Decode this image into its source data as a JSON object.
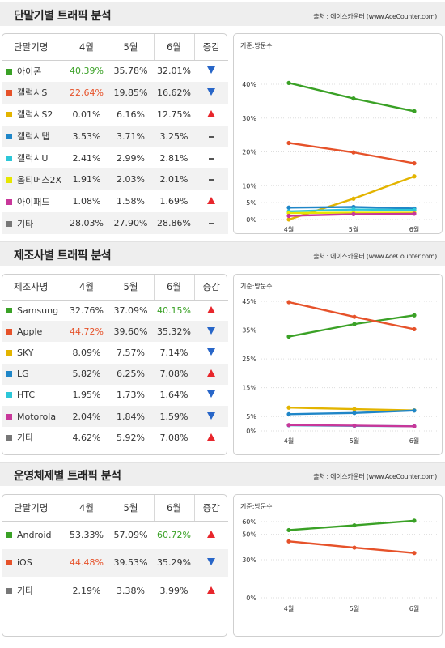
{
  "colors": {
    "green": "#3aa126",
    "red": "#e6522a",
    "hl_green": "#3aa126",
    "hl_red": "#e6522a"
  },
  "source_text": "출처 : 에이스카운터 (www.AceCounter.com)",
  "chart_note": "기준:방문수",
  "sections": [
    {
      "title": "단말기별 트래픽 분석",
      "source": "출처 : 에이스카운터 (www.AceCounter.com)",
      "columns": [
        "단말기명",
        "4월",
        "5월",
        "6월",
        "증감"
      ],
      "rows": [
        {
          "name": "아이폰",
          "color": "#3aa126",
          "v4": "40.39%",
          "v5": "35.78%",
          "v6": "32.01%",
          "trend": "down",
          "hl": "v4",
          "hl_color": "#3aa126"
        },
        {
          "name": "갤럭시S",
          "color": "#e6522a",
          "v4": "22.64%",
          "v5": "19.85%",
          "v6": "16.62%",
          "trend": "down",
          "hl": "v4",
          "hl_color": "#e6522a"
        },
        {
          "name": "갤럭시S2",
          "color": "#e3b400",
          "v4": "0.01%",
          "v5": "6.16%",
          "v6": "12.75%",
          "trend": "up"
        },
        {
          "name": "갤럭시탭",
          "color": "#1f86c8",
          "v4": "3.53%",
          "v5": "3.71%",
          "v6": "3.25%",
          "trend": "flat"
        },
        {
          "name": "갤럭시U",
          "color": "#2cc7d8",
          "v4": "2.41%",
          "v5": "2.99%",
          "v6": "2.81%",
          "trend": "flat"
        },
        {
          "name": "옵티머스2X",
          "color": "#e6e600",
          "v4": "1.91%",
          "v5": "2.03%",
          "v6": "2.01%",
          "trend": "flat"
        },
        {
          "name": "아이패드",
          "color": "#c8379a",
          "v4": "1.08%",
          "v5": "1.58%",
          "v6": "1.69%",
          "trend": "up"
        },
        {
          "name": "기타",
          "color": "#777777",
          "v4": "28.03%",
          "v5": "27.90%",
          "v6": "28.86%",
          "trend": "flat"
        }
      ]
    },
    {
      "title": "제조사별 트래픽 분석",
      "source": "출처 : 에이스카운터 (www.AceCounter.com)",
      "columns": [
        "제조사명",
        "4월",
        "5월",
        "6월",
        "증감"
      ],
      "rows": [
        {
          "name": "Samsung",
          "color": "#3aa126",
          "v4": "32.76%",
          "v5": "37.09%",
          "v6": "40.15%",
          "trend": "up",
          "hl": "v6",
          "hl_color": "#3aa126"
        },
        {
          "name": "Apple",
          "color": "#e6522a",
          "v4": "44.72%",
          "v5": "39.60%",
          "v6": "35.32%",
          "trend": "down",
          "hl": "v4",
          "hl_color": "#e6522a"
        },
        {
          "name": "SKY",
          "color": "#e3b400",
          "v4": "8.09%",
          "v5": "7.57%",
          "v6": "7.14%",
          "trend": "down"
        },
        {
          "name": "LG",
          "color": "#1f86c8",
          "v4": "5.82%",
          "v5": "6.25%",
          "v6": "7.08%",
          "trend": "up"
        },
        {
          "name": "HTC",
          "color": "#2cc7d8",
          "v4": "1.95%",
          "v5": "1.73%",
          "v6": "1.64%",
          "trend": "down"
        },
        {
          "name": "Motorola",
          "color": "#c8379a",
          "v4": "2.04%",
          "v5": "1.84%",
          "v6": "1.59%",
          "trend": "down"
        },
        {
          "name": "기타",
          "color": "#777777",
          "v4": "4.62%",
          "v5": "5.92%",
          "v6": "7.08%",
          "trend": "up"
        }
      ]
    },
    {
      "title": "운영체제별 트래픽 분석",
      "source": "출처 : 에이스카운터 (www.AceCounter.com)",
      "columns": [
        "단말기명",
        "4월",
        "5월",
        "6월",
        "증감"
      ],
      "rows": [
        {
          "name": "Android",
          "color": "#3aa126",
          "v4": "53.33%",
          "v5": "57.09%",
          "v6": "60.72%",
          "trend": "up",
          "hl": "v6",
          "hl_color": "#3aa126"
        },
        {
          "name": "iOS",
          "color": "#e6522a",
          "v4": "44.48%",
          "v5": "39.53%",
          "v6": "35.29%",
          "trend": "down",
          "hl": "v4",
          "hl_color": "#e6522a"
        },
        {
          "name": "기타",
          "color": "#777777",
          "v4": "2.19%",
          "v5": "3.38%",
          "v6": "3.99%",
          "trend": "up"
        }
      ]
    }
  ],
  "chart_data": [
    {
      "type": "line",
      "note": "기준:방문수",
      "x": [
        "4월",
        "5월",
        "6월"
      ],
      "yticks": [
        "0%",
        "5%",
        "10%",
        "20%",
        "30%",
        "40%"
      ],
      "ytick_values": [
        0,
        5,
        10,
        20,
        30,
        40
      ],
      "ylim": [
        0,
        45
      ],
      "series": [
        {
          "name": "아이폰",
          "color": "#3aa126",
          "values": [
            40.39,
            35.78,
            32.01
          ]
        },
        {
          "name": "갤럭시S",
          "color": "#e6522a",
          "values": [
            22.64,
            19.85,
            16.62
          ]
        },
        {
          "name": "갤럭시S2",
          "color": "#e3b400",
          "values": [
            0.01,
            6.16,
            12.75
          ]
        },
        {
          "name": "갤럭시탭",
          "color": "#1f86c8",
          "values": [
            3.53,
            3.71,
            3.25
          ]
        },
        {
          "name": "갤럭시U",
          "color": "#2cc7d8",
          "values": [
            2.41,
            2.99,
            2.81
          ]
        },
        {
          "name": "옵티머스2X",
          "color": "#e6e600",
          "values": [
            1.91,
            2.03,
            2.01
          ]
        },
        {
          "name": "아이패드",
          "color": "#c8379a",
          "values": [
            1.08,
            1.58,
            1.69
          ]
        }
      ]
    },
    {
      "type": "line",
      "note": "기준:방문수",
      "x": [
        "4월",
        "5월",
        "6월"
      ],
      "yticks": [
        "0%",
        "5%",
        "15%",
        "25%",
        "35%",
        "45%"
      ],
      "ytick_values": [
        0,
        5,
        15,
        25,
        35,
        45
      ],
      "ylim": [
        0,
        45
      ],
      "series": [
        {
          "name": "Samsung",
          "color": "#3aa126",
          "values": [
            32.76,
            37.09,
            40.15
          ]
        },
        {
          "name": "Apple",
          "color": "#e6522a",
          "values": [
            44.72,
            39.6,
            35.32
          ]
        },
        {
          "name": "SKY",
          "color": "#e3b400",
          "values": [
            8.09,
            7.57,
            7.14
          ]
        },
        {
          "name": "LG",
          "color": "#1f86c8",
          "values": [
            5.82,
            6.25,
            7.08
          ]
        },
        {
          "name": "HTC",
          "color": "#2cc7d8",
          "values": [
            1.95,
            1.73,
            1.64
          ]
        },
        {
          "name": "Motorola",
          "color": "#c8379a",
          "values": [
            2.04,
            1.84,
            1.59
          ]
        }
      ]
    },
    {
      "type": "line",
      "note": "기준:방문수",
      "x": [
        "4월",
        "5월",
        "6월"
      ],
      "yticks": [
        "0%",
        "30%",
        "50%",
        "60%"
      ],
      "ytick_values": [
        0,
        30,
        50,
        60
      ],
      "ylim": [
        0,
        65
      ],
      "series": [
        {
          "name": "Android",
          "color": "#3aa126",
          "values": [
            53.33,
            57.09,
            60.72
          ]
        },
        {
          "name": "iOS",
          "color": "#e6522a",
          "values": [
            44.48,
            39.53,
            35.29
          ]
        }
      ]
    }
  ]
}
